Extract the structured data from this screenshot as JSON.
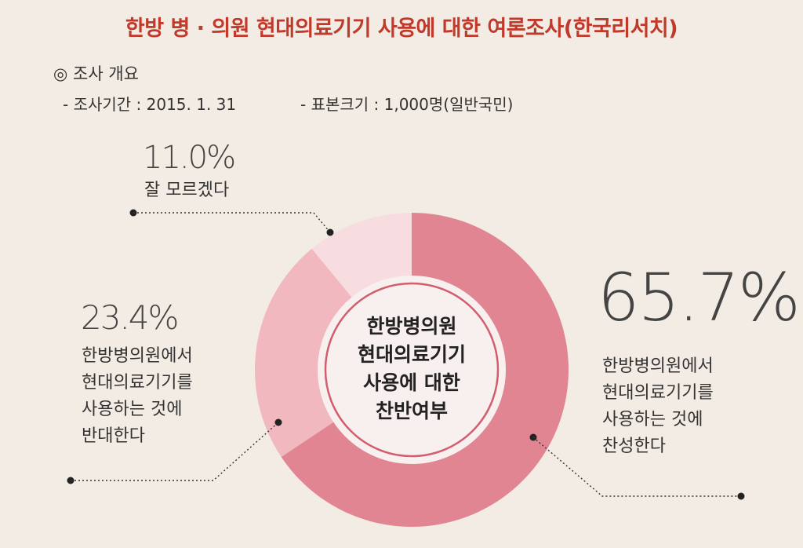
{
  "title": "한방 병 · 의원 현대의료기기 사용에 대한 여론조사(한국리서치)",
  "overview": {
    "heading": "◎ 조사 개요",
    "period": "- 조사기간 : 2015. 1. 31",
    "sample": "- 표본크기 : 1,000명(일반국민)"
  },
  "chart_data": {
    "type": "pie",
    "title": "",
    "center_label": [
      "한방병의원",
      "현대의료기기",
      "사용에 대한",
      "찬반여부"
    ],
    "slices": [
      {
        "name": "찬성",
        "value": 65.7,
        "percent_label": "65.7%",
        "description": [
          "한방병의원에서",
          "현대의료기기를",
          "사용하는 것에",
          "찬성한다"
        ],
        "color": "#e28593"
      },
      {
        "name": "반대",
        "value": 23.4,
        "percent_label": "23.4%",
        "description": [
          "한방병의원에서",
          "현대의료기기를",
          "사용하는 것에",
          "반대한다"
        ],
        "color": "#f1b9bf"
      },
      {
        "name": "잘 모르겠다",
        "value": 11.0,
        "percent_label": "11.0%",
        "description": [
          "잘 모르겠다"
        ],
        "color": "#f8dde0"
      }
    ]
  }
}
